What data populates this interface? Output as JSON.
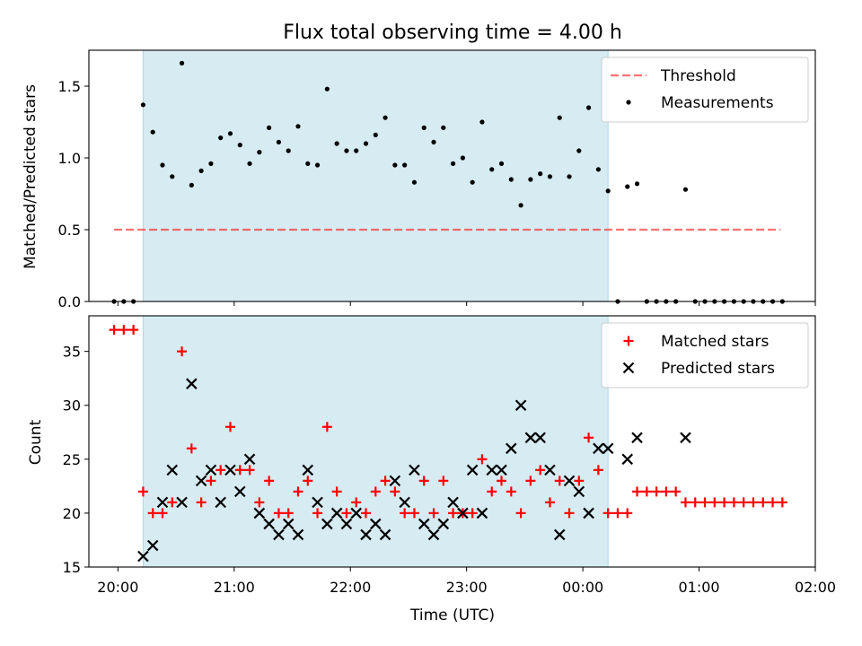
{
  "chart_data": [
    {
      "type": "scatter",
      "title": "Flux total observing time = 4.00 h",
      "ylabel": "Matched/Predicted stars",
      "xlabel": "",
      "xlim": [
        "19:45",
        "02:00"
      ],
      "ylim": [
        0,
        1.75
      ],
      "yticks": [
        0.0,
        0.5,
        1.0,
        1.5
      ],
      "ytick_labels": [
        "0.0",
        "0.5",
        "1.0",
        "1.5"
      ],
      "shaded_interval": [
        "20:13",
        "00:13"
      ],
      "shaded_color": "#add8e6",
      "threshold": {
        "name": "Threshold",
        "value": 0.5,
        "x_range": [
          "19:58",
          "01:42"
        ],
        "color": "#ff0000",
        "style": "dashed"
      },
      "legend_position": "upper right",
      "series": [
        {
          "name": "Measurements",
          "color": "#000000",
          "marker": "dot",
          "points": [
            [
              "19:58",
              0.0
            ],
            [
              "20:03",
              0.0
            ],
            [
              "20:08",
              0.0
            ],
            [
              "20:13",
              1.37
            ],
            [
              "20:18",
              1.18
            ],
            [
              "20:23",
              0.95
            ],
            [
              "20:28",
              0.87
            ],
            [
              "20:33",
              1.66
            ],
            [
              "20:38",
              0.81
            ],
            [
              "20:43",
              0.91
            ],
            [
              "20:48",
              0.96
            ],
            [
              "20:53",
              1.14
            ],
            [
              "20:58",
              1.17
            ],
            [
              "21:03",
              1.09
            ],
            [
              "21:08",
              0.96
            ],
            [
              "21:13",
              1.04
            ],
            [
              "21:18",
              1.21
            ],
            [
              "21:23",
              1.11
            ],
            [
              "21:28",
              1.05
            ],
            [
              "21:33",
              1.22
            ],
            [
              "21:38",
              0.96
            ],
            [
              "21:43",
              0.95
            ],
            [
              "21:48",
              1.48
            ],
            [
              "21:53",
              1.1
            ],
            [
              "21:58",
              1.05
            ],
            [
              "22:03",
              1.05
            ],
            [
              "22:08",
              1.1
            ],
            [
              "22:13",
              1.16
            ],
            [
              "22:18",
              1.28
            ],
            [
              "22:23",
              0.95
            ],
            [
              "22:28",
              0.95
            ],
            [
              "22:33",
              0.83
            ],
            [
              "22:38",
              1.21
            ],
            [
              "22:43",
              1.11
            ],
            [
              "22:48",
              1.21
            ],
            [
              "22:53",
              0.96
            ],
            [
              "22:58",
              1.0
            ],
            [
              "23:03",
              0.83
            ],
            [
              "23:08",
              1.25
            ],
            [
              "23:13",
              0.92
            ],
            [
              "23:18",
              0.96
            ],
            [
              "23:23",
              0.85
            ],
            [
              "23:28",
              0.67
            ],
            [
              "23:33",
              0.85
            ],
            [
              "23:38",
              0.89
            ],
            [
              "23:43",
              0.87
            ],
            [
              "23:48",
              1.28
            ],
            [
              "23:53",
              0.87
            ],
            [
              "23:58",
              1.05
            ],
            [
              "00:03",
              1.35
            ],
            [
              "00:08",
              0.92
            ],
            [
              "00:13",
              0.77
            ],
            [
              "00:18",
              0.0
            ],
            [
              "00:23",
              0.8
            ],
            [
              "00:28",
              0.82
            ],
            [
              "00:33",
              0.0
            ],
            [
              "00:38",
              0.0
            ],
            [
              "00:43",
              0.0
            ],
            [
              "00:48",
              0.0
            ],
            [
              "00:53",
              0.78
            ],
            [
              "00:58",
              0.0
            ],
            [
              "01:03",
              0.0
            ],
            [
              "01:08",
              0.0
            ],
            [
              "01:13",
              0.0
            ],
            [
              "01:18",
              0.0
            ],
            [
              "01:23",
              0.0
            ],
            [
              "01:28",
              0.0
            ],
            [
              "01:33",
              0.0
            ],
            [
              "01:38",
              0.0
            ],
            [
              "01:43",
              0.0
            ]
          ]
        }
      ]
    },
    {
      "type": "scatter",
      "title": "",
      "ylabel": "Count",
      "xlabel": "Time (UTC)",
      "xlim": [
        "19:45",
        "02:00"
      ],
      "ylim": [
        15,
        38.3
      ],
      "yticks": [
        15,
        20,
        25,
        30,
        35
      ],
      "ytick_labels": [
        "15",
        "20",
        "25",
        "30",
        "35"
      ],
      "xticks": [
        "20:00",
        "21:00",
        "22:00",
        "23:00",
        "00:00",
        "01:00",
        "02:00"
      ],
      "shaded_interval": [
        "20:13",
        "00:13"
      ],
      "shaded_color": "#add8e6",
      "legend_position": "upper right",
      "series": [
        {
          "name": "Matched stars",
          "color": "#ff0000",
          "marker": "plus",
          "points": [
            [
              "19:58",
              37
            ],
            [
              "20:03",
              37
            ],
            [
              "20:08",
              37
            ],
            [
              "20:13",
              22
            ],
            [
              "20:18",
              20
            ],
            [
              "20:23",
              20
            ],
            [
              "20:28",
              21
            ],
            [
              "20:33",
              35
            ],
            [
              "20:38",
              26
            ],
            [
              "20:43",
              21
            ],
            [
              "20:48",
              23
            ],
            [
              "20:53",
              24
            ],
            [
              "20:58",
              28
            ],
            [
              "21:03",
              24
            ],
            [
              "21:08",
              24
            ],
            [
              "21:13",
              21
            ],
            [
              "21:18",
              23
            ],
            [
              "21:23",
              20
            ],
            [
              "21:28",
              20
            ],
            [
              "21:33",
              22
            ],
            [
              "21:38",
              23
            ],
            [
              "21:43",
              20
            ],
            [
              "21:48",
              28
            ],
            [
              "21:53",
              22
            ],
            [
              "21:58",
              20
            ],
            [
              "22:03",
              21
            ],
            [
              "22:08",
              20
            ],
            [
              "22:13",
              22
            ],
            [
              "22:18",
              23
            ],
            [
              "22:23",
              22
            ],
            [
              "22:28",
              20
            ],
            [
              "22:33",
              20
            ],
            [
              "22:38",
              23
            ],
            [
              "22:43",
              20
            ],
            [
              "22:48",
              23
            ],
            [
              "22:53",
              20
            ],
            [
              "22:58",
              20
            ],
            [
              "23:03",
              20
            ],
            [
              "23:08",
              25
            ],
            [
              "23:13",
              22
            ],
            [
              "23:18",
              23
            ],
            [
              "23:23",
              22
            ],
            [
              "23:28",
              20
            ],
            [
              "23:33",
              23
            ],
            [
              "23:38",
              24
            ],
            [
              "23:43",
              21
            ],
            [
              "23:48",
              23
            ],
            [
              "23:53",
              20
            ],
            [
              "23:58",
              23
            ],
            [
              "00:03",
              27
            ],
            [
              "00:08",
              24
            ],
            [
              "00:13",
              20
            ],
            [
              "00:18",
              20
            ],
            [
              "00:23",
              20
            ],
            [
              "00:28",
              22
            ],
            [
              "00:33",
              22
            ],
            [
              "00:38",
              22
            ],
            [
              "00:43",
              22
            ],
            [
              "00:48",
              22
            ],
            [
              "00:53",
              21
            ],
            [
              "00:58",
              21
            ],
            [
              "01:03",
              21
            ],
            [
              "01:08",
              21
            ],
            [
              "01:13",
              21
            ],
            [
              "01:18",
              21
            ],
            [
              "01:23",
              21
            ],
            [
              "01:28",
              21
            ],
            [
              "01:33",
              21
            ],
            [
              "01:38",
              21
            ],
            [
              "01:43",
              21
            ]
          ]
        },
        {
          "name": "Predicted stars",
          "color": "#000000",
          "marker": "x",
          "points": [
            [
              "20:13",
              16
            ],
            [
              "20:18",
              17
            ],
            [
              "20:23",
              21
            ],
            [
              "20:28",
              24
            ],
            [
              "20:33",
              21
            ],
            [
              "20:38",
              32
            ],
            [
              "20:43",
              23
            ],
            [
              "20:48",
              24
            ],
            [
              "20:53",
              21
            ],
            [
              "20:58",
              24
            ],
            [
              "21:03",
              22
            ],
            [
              "21:08",
              25
            ],
            [
              "21:13",
              20
            ],
            [
              "21:18",
              19
            ],
            [
              "21:23",
              18
            ],
            [
              "21:28",
              19
            ],
            [
              "21:33",
              18
            ],
            [
              "21:38",
              24
            ],
            [
              "21:43",
              21
            ],
            [
              "21:48",
              19
            ],
            [
              "21:53",
              20
            ],
            [
              "21:58",
              19
            ],
            [
              "22:03",
              20
            ],
            [
              "22:08",
              18
            ],
            [
              "22:13",
              19
            ],
            [
              "22:18",
              18
            ],
            [
              "22:23",
              23
            ],
            [
              "22:28",
              21
            ],
            [
              "22:33",
              24
            ],
            [
              "22:38",
              19
            ],
            [
              "22:43",
              18
            ],
            [
              "22:48",
              19
            ],
            [
              "22:53",
              21
            ],
            [
              "22:58",
              20
            ],
            [
              "23:03",
              24
            ],
            [
              "23:08",
              20
            ],
            [
              "23:13",
              24
            ],
            [
              "23:18",
              24
            ],
            [
              "23:23",
              26
            ],
            [
              "23:28",
              30
            ],
            [
              "23:33",
              27
            ],
            [
              "23:38",
              27
            ],
            [
              "23:43",
              24
            ],
            [
              "23:48",
              18
            ],
            [
              "23:53",
              23
            ],
            [
              "23:58",
              22
            ],
            [
              "00:03",
              20
            ],
            [
              "00:08",
              26
            ],
            [
              "00:13",
              26
            ],
            [
              "00:23",
              25
            ],
            [
              "00:28",
              27
            ],
            [
              "00:53",
              27
            ]
          ]
        }
      ]
    }
  ]
}
